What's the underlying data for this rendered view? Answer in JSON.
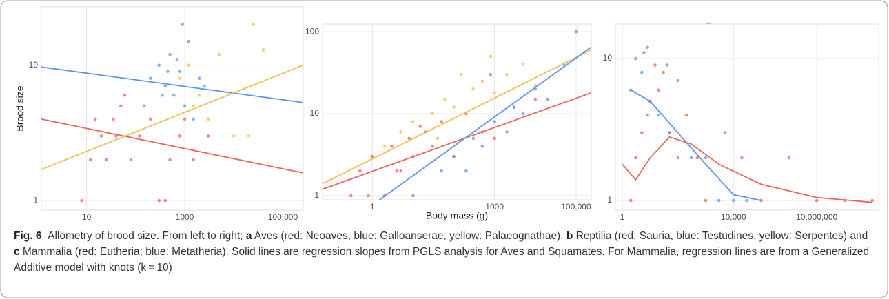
{
  "chart_data": [
    {
      "type": "scatter",
      "ylabel": "Brood size",
      "xscale": "log",
      "yscale": "log",
      "grid": true,
      "xlim": [
        1.2,
        260000
      ],
      "ylim": [
        0.85,
        27
      ],
      "xticks": [
        10,
        1000,
        {
          "value": 100000,
          "label": "100,000"
        }
      ],
      "yticks": [
        1,
        10
      ],
      "series": [
        {
          "color": "#f0625b",
          "x": [
            8,
            12,
            20,
            35,
            50,
            80,
            120,
            200,
            300,
            500,
            800,
            1500,
            15,
            40,
            60,
            150,
            25,
            400,
            1000,
            3000
          ],
          "values": [
            1,
            2,
            3,
            4,
            5,
            2,
            3,
            4,
            1,
            2,
            3,
            2,
            4,
            3,
            6,
            5,
            2,
            1,
            4,
            3
          ]
        },
        {
          "color": "#5b95f0",
          "x": [
            200,
            300,
            400,
            500,
            600,
            800,
            1000,
            1200,
            1500,
            2000,
            700,
            900,
            350,
            2500,
            450
          ],
          "values": [
            8,
            10,
            7,
            12,
            6,
            9,
            5,
            15,
            4,
            8,
            11,
            20,
            6,
            7,
            9
          ]
        },
        {
          "color": "#f0bf4c",
          "x": [
            800,
            1500,
            3000,
            5000,
            20000,
            25000,
            40000,
            2000,
            10000,
            1200
          ],
          "values": [
            8,
            5,
            4,
            12,
            3,
            20,
            13,
            6,
            3,
            10
          ]
        }
      ],
      "fits": [
        {
          "color": "#5b95f0",
          "x": [
            1.2,
            260000
          ],
          "values": [
            9.7,
            5.3
          ]
        },
        {
          "color": "#f0625b",
          "x": [
            1.2,
            260000
          ],
          "values": [
            4.0,
            1.6
          ]
        },
        {
          "color": "#f0bf4c",
          "x": [
            1.2,
            260000
          ],
          "values": [
            1.7,
            10
          ]
        }
      ]
    },
    {
      "type": "scatter",
      "xlabel": "Body mass (g)",
      "xscale": "log",
      "yscale": "log",
      "grid": true,
      "xlim": [
        0.06,
        236000
      ],
      "ylim": [
        0.89,
        124
      ],
      "xticks": [
        1,
        1000,
        {
          "value": 100000,
          "label": "100,000"
        }
      ],
      "yticks": [
        1,
        10,
        100
      ],
      "series": [
        {
          "color": "#f0625b",
          "x": [
            0.3,
            0.5,
            1,
            2,
            3,
            5,
            8,
            10,
            20,
            30,
            50,
            100,
            200,
            500,
            1000,
            3000,
            10000,
            0.8,
            4,
            15
          ],
          "values": [
            1,
            2,
            3,
            1,
            4,
            2,
            5,
            3,
            6,
            4,
            8,
            3,
            10,
            6,
            5,
            12,
            15,
            1,
            2,
            7
          ]
        },
        {
          "color": "#5b95f0",
          "x": [
            10,
            50,
            100,
            300,
            500,
            1000,
            2000,
            5000,
            10000,
            20000,
            50000,
            200,
            3000,
            800,
            100000
          ],
          "values": [
            1,
            2,
            3,
            5,
            4,
            8,
            6,
            10,
            20,
            15,
            40,
            2,
            12,
            30,
            100
          ]
        },
        {
          "color": "#f0bf4c",
          "x": [
            2,
            5,
            10,
            30,
            60,
            100,
            300,
            500,
            1000,
            2000,
            5000,
            10000,
            150,
            40,
            800
          ],
          "values": [
            4,
            6,
            8,
            10,
            15,
            12,
            20,
            25,
            18,
            30,
            40,
            22,
            30,
            5,
            50
          ]
        }
      ],
      "fits": [
        {
          "color": "#f0625b",
          "x": [
            0.06,
            236000
          ],
          "values": [
            1.2,
            18
          ]
        },
        {
          "color": "#f0bf4c",
          "x": [
            0.06,
            236000
          ],
          "values": [
            1.4,
            60
          ]
        },
        {
          "color": "#5b95f0",
          "x": [
            1.5,
            236000
          ],
          "values": [
            0.89,
            65
          ]
        }
      ]
    },
    {
      "type": "scatter",
      "xscale": "log",
      "yscale": "log",
      "grid": true,
      "xlim": [
        0.56,
        1700000000
      ],
      "ylim": [
        0.855,
        17.5
      ],
      "xticks": [
        1,
        {
          "value": 10000,
          "label": "10,000"
        },
        {
          "value": 10000000,
          "label": "10,000,000"
        }
      ],
      "yticks": [
        1,
        10
      ],
      "series": [
        {
          "color": "#f0625b",
          "x": [
            2,
            3,
            5,
            8,
            10,
            20,
            30,
            50,
            100,
            200,
            500,
            1000,
            5000,
            20000,
            100000,
            1000000,
            10000000,
            100000000,
            1000000000,
            15
          ],
          "values": [
            1,
            2,
            3,
            4,
            5,
            6,
            8,
            3,
            2,
            4,
            2,
            1,
            3,
            2,
            1,
            2,
            1,
            1,
            1,
            9
          ]
        },
        {
          "color": "#5b95f0",
          "x": [
            2,
            3,
            5,
            8,
            10,
            20,
            50,
            100,
            300,
            1000,
            3000,
            10000,
            30000,
            6,
            40
          ],
          "values": [
            6,
            10,
            8,
            12,
            5,
            4,
            3,
            7,
            2,
            2,
            1,
            1,
            1,
            11,
            9
          ]
        }
      ],
      "fits": [
        {
          "color": "#5b95f0",
          "x": [
            2,
            10,
            100,
            1000,
            10000,
            100000
          ],
          "values": [
            6,
            5,
            3,
            1.8,
            1.1,
            1
          ]
        },
        {
          "color": "#f0625b",
          "x": [
            1,
            3,
            10,
            50,
            300,
            3000,
            100000,
            10000000,
            1000000000
          ],
          "values": [
            1.8,
            1.4,
            2,
            2.8,
            2.5,
            1.8,
            1.3,
            1.05,
            0.97
          ]
        }
      ]
    }
  ],
  "caption": {
    "label": "Fig. 6",
    "segments": [
      "Allometry of brood size. From left to right; ",
      "a",
      " Aves (red: Neoaves, blue: Galloanserae, yellow: Palaeognathae), ",
      "b",
      " Reptilia (red: Sauria, blue: Testudines, yellow: Serpentes) and ",
      "c",
      " Mammalia (red: Eutheria; blue: Metatheria). Solid lines are regression slopes from PGLS analysis for Aves and Squamates. For Mammalia, regression lines are from a Generalized Additive model with knots (k = 10)"
    ]
  }
}
